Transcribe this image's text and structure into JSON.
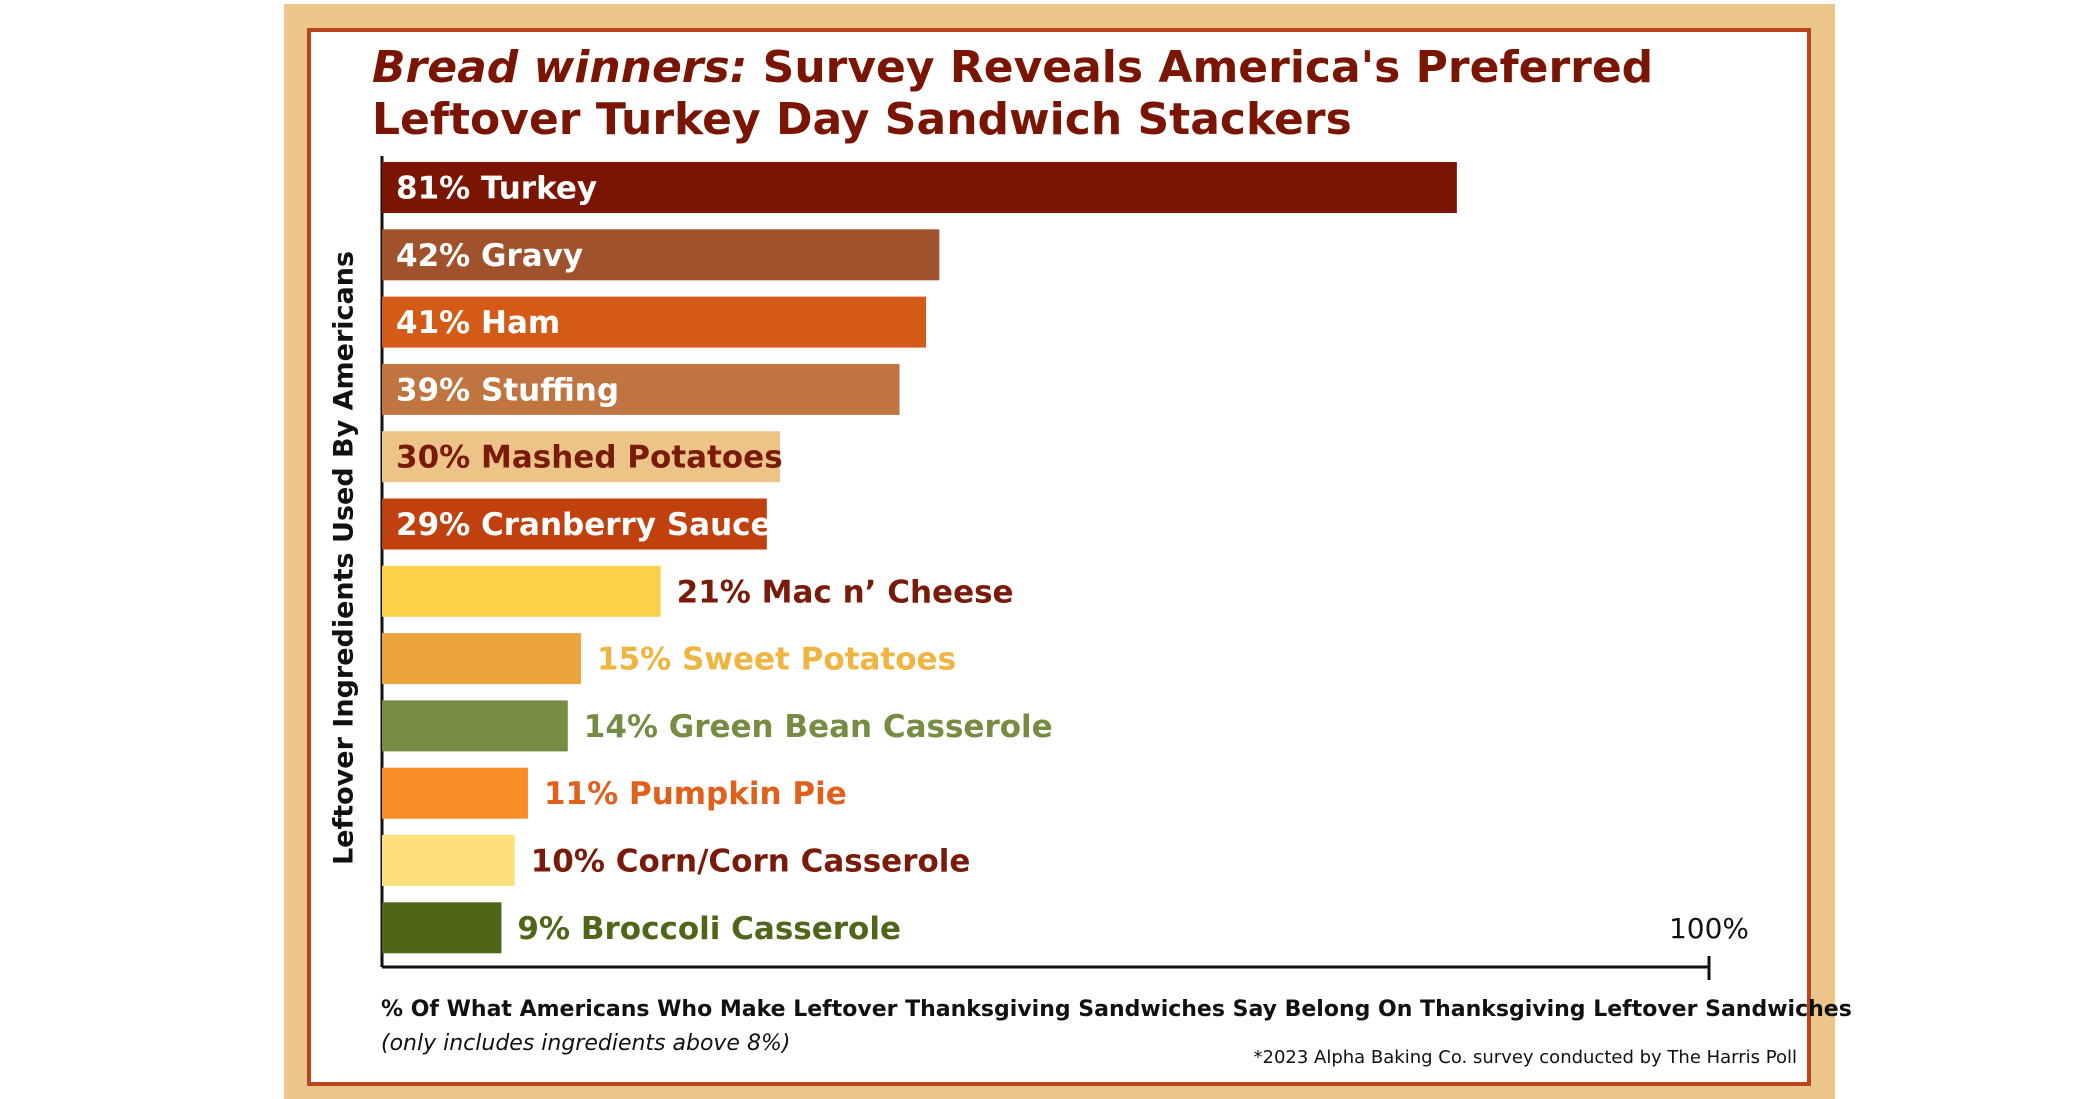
{
  "chart_data": {
    "type": "bar",
    "orientation": "horizontal",
    "title": {
      "emphasis": "Bread winners:",
      "lines": [
        "Survey Reveals America's Preferred",
        "Leftover Turkey Day Sandwich Stackers"
      ]
    },
    "ylabel": "Leftover Ingredients Used By Americans",
    "xlabel": "% Of What Americans Who Make Leftover Thanksgiving Sandwiches Say Belong On Thanksgiving Leftover Sandwiches",
    "note": "(only includes ingredients above 8%)",
    "source": "*2023 Alpha Baking Co. survey conducted by The Harris Poll",
    "categories": [
      "Turkey",
      "Gravy",
      "Ham",
      "Stuffing",
      "Mashed Potatoes",
      "Cranberry Sauce",
      "Mac n’ Cheese",
      "Sweet Potatoes",
      "Green Bean Casserole",
      "Pumpkin Pie",
      "Corn/Corn Casserole",
      "Broccoli Casserole"
    ],
    "values": [
      81,
      42,
      41,
      39,
      30,
      29,
      21,
      15,
      14,
      11,
      10,
      9
    ],
    "value_labels": [
      "81%",
      "42%",
      "41%",
      "39%",
      "30%",
      "29%",
      "21%",
      "15%",
      "14%",
      "11%",
      "10%",
      "9%"
    ],
    "colors": [
      "#7a1503",
      "#a0522d",
      "#d45b17",
      "#c07440",
      "#ecc488",
      "#c0410e",
      "#fdd04a",
      "#eba53c",
      "#758c42",
      "#f98d28",
      "#fde07c",
      "#4f6618"
    ],
    "label_colors": [
      "#ffffff",
      "#ffffff",
      "#ffffff",
      "#ffffff",
      "#7a1a0a",
      "#ffffff",
      "#7a1a0a",
      "#f0b540",
      "#758c42",
      "#e0611c",
      "#7a1a0a",
      "#4f6618"
    ],
    "xlim": [
      0,
      100
    ],
    "xticks": [
      {
        "value": 100,
        "label": "100%"
      }
    ]
  }
}
